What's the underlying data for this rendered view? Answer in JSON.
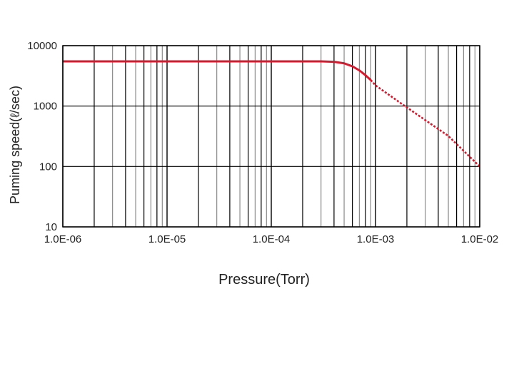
{
  "chart_data": {
    "type": "line",
    "title": "",
    "xlabel": "Pressure(Torr)",
    "ylabel": "Puming speed(ℓ/sec)",
    "x_scale": "log",
    "y_scale": "log",
    "xlim": [
      1e-06,
      0.01
    ],
    "ylim": [
      10,
      10000
    ],
    "x_ticks": [
      1e-06,
      1e-05,
      0.0001,
      0.001,
      0.01
    ],
    "x_tick_labels": [
      "1.0E-06",
      "1.0E-05",
      "1.0E-04",
      "1.0E-03",
      "1.0E-02"
    ],
    "y_ticks": [
      10,
      100,
      1000,
      10000
    ],
    "y_tick_labels": [
      "10",
      "100",
      "1000",
      "10000"
    ],
    "grid": true,
    "legend": "none",
    "series": [
      {
        "style": "solid",
        "color": "#d7192d",
        "x": [
          1e-06,
          1e-05,
          0.0001,
          0.0003,
          0.0004,
          0.0005,
          0.0006,
          0.0007,
          0.0008,
          0.0009
        ],
        "y": [
          5500,
          5500,
          5500,
          5500,
          5400,
          5100,
          4550,
          3900,
          3250,
          2700
        ]
      },
      {
        "style": "dotted",
        "color": "#d7192d",
        "x": [
          0.0009,
          0.001,
          0.002,
          0.005,
          0.01
        ],
        "y": [
          2700,
          2200,
          950,
          320,
          100
        ]
      }
    ]
  }
}
